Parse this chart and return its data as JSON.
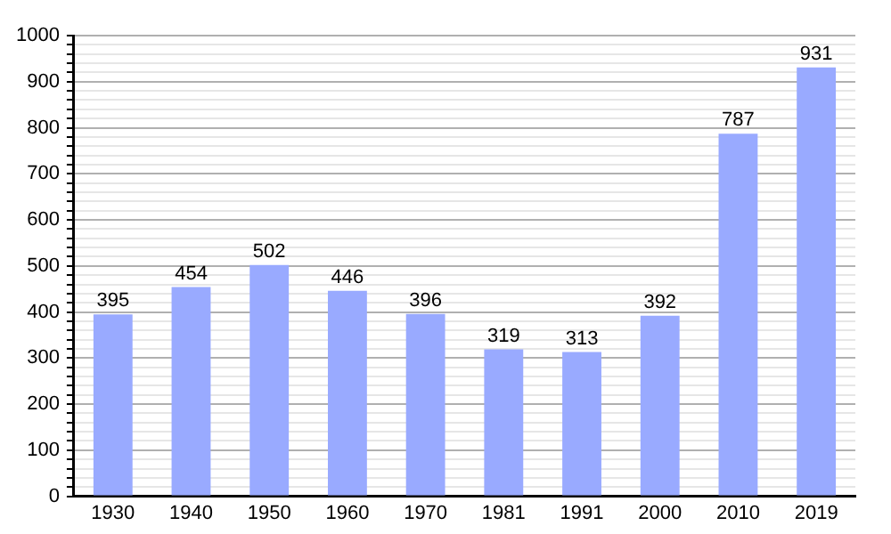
{
  "chart_data": {
    "type": "bar",
    "categories": [
      "1930",
      "1940",
      "1950",
      "1960",
      "1970",
      "1981",
      "1991",
      "2000",
      "2010",
      "2019"
    ],
    "values": [
      395,
      454,
      502,
      446,
      396,
      319,
      313,
      392,
      787,
      931
    ],
    "color": "#99aaff",
    "ylim": [
      0,
      1000
    ],
    "yticks": [
      0,
      {
        "value": 20,
        "label": null
      },
      {
        "value": 40,
        "label": null
      },
      {
        "value": 60,
        "label": null
      },
      {
        "value": 80,
        "label": null
      },
      100,
      {
        "value": 120,
        "label": null
      },
      {
        "value": 140,
        "label": null
      },
      {
        "value": 160,
        "label": null
      },
      {
        "value": 180,
        "label": null
      },
      200,
      {
        "value": 220,
        "label": null
      },
      {
        "value": 240,
        "label": null
      },
      {
        "value": 260,
        "label": null
      },
      {
        "value": 280,
        "label": null
      },
      300,
      {
        "value": 320,
        "label": null
      },
      {
        "value": 340,
        "label": null
      },
      {
        "value": 360,
        "label": null
      },
      {
        "value": 380,
        "label": null
      },
      400,
      {
        "value": 420,
        "label": null
      },
      {
        "value": 440,
        "label": null
      },
      {
        "value": 460,
        "label": null
      },
      {
        "value": 480,
        "label": null
      },
      500,
      {
        "value": 520,
        "label": null
      },
      {
        "value": 540,
        "label": null
      },
      {
        "value": 560,
        "label": null
      },
      {
        "value": 580,
        "label": null
      },
      600,
      {
        "value": 620,
        "label": null
      },
      {
        "value": 640,
        "label": null
      },
      {
        "value": 660,
        "label": null
      },
      {
        "value": 680,
        "label": null
      },
      700,
      {
        "value": 720,
        "label": null
      },
      {
        "value": 740,
        "label": null
      },
      {
        "value": 760,
        "label": null
      },
      {
        "value": 780,
        "label": null
      },
      800,
      {
        "value": 820,
        "label": null
      },
      {
        "value": 840,
        "label": null
      },
      {
        "value": 860,
        "label": null
      },
      {
        "value": 880,
        "label": null
      },
      900,
      {
        "value": 920,
        "label": null
      },
      {
        "value": 940,
        "label": null
      },
      {
        "value": 960,
        "label": null
      },
      {
        "value": 980,
        "label": null
      },
      1000
    ],
    "grid": true,
    "data_labels": true
  }
}
